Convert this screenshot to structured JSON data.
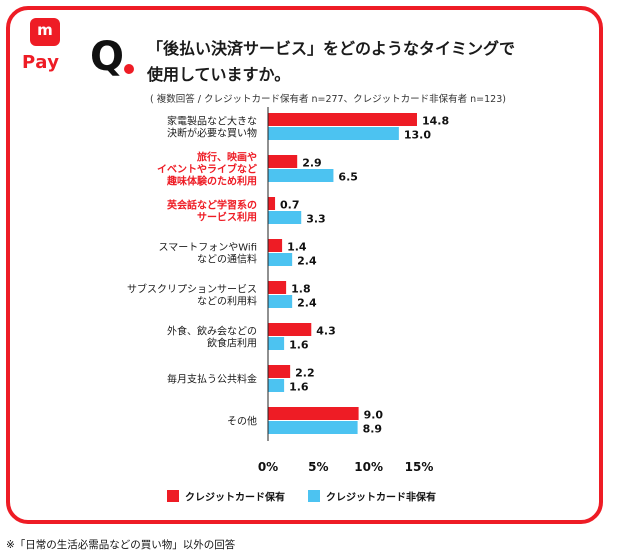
{
  "logo": {
    "mark_letter": "m",
    "text": "Pay"
  },
  "question": {
    "mark": "Q",
    "line1": "「後払い決済サービス」をどのようなタイミングで",
    "line2": "使用していますか。"
  },
  "note": "( 複数回答 / クレジットカード保有者 n=277、クレジットカード非保有者 n=123)",
  "footnote": "※「日常の生活必需品などの買い物」以外の回答",
  "colors": {
    "accent": "#ee1c25",
    "series1": "#ee1c25",
    "series2": "#4cc3f1"
  },
  "chart_data": {
    "type": "bar",
    "orientation": "horizontal",
    "categories": [
      [
        "家電製品など大きな",
        "決断が必要な買い物"
      ],
      [
        "旅行、映画や",
        "イベントやライブなど",
        "趣味体験のため利用"
      ],
      [
        "英会話など学習系の",
        "サービス利用"
      ],
      [
        "スマートフォンやWifi",
        "などの通信料"
      ],
      [
        "サブスクリプションサービス",
        "などの利用料"
      ],
      [
        "外食、飲み会などの",
        "飲食店利用"
      ],
      [
        "毎月支払う公共料金"
      ],
      [
        "その他"
      ]
    ],
    "highlighted": [
      false,
      true,
      true,
      false,
      false,
      false,
      false,
      false
    ],
    "series": [
      {
        "name": "クレジットカード保有",
        "values": [
          14.8,
          2.9,
          0.7,
          1.4,
          1.8,
          4.3,
          2.2,
          9.0
        ],
        "labels": [
          "14.8",
          "2.9",
          "0.7",
          "1.4",
          "1.8",
          "4.3",
          "2.2",
          "9.0"
        ]
      },
      {
        "name": "クレジットカード非保有",
        "values": [
          13.0,
          6.5,
          3.3,
          2.4,
          2.4,
          1.6,
          1.6,
          8.9
        ],
        "labels": [
          "13.0",
          "6.5",
          "3.3",
          "2.4",
          "2.4",
          "1.6",
          "1.6",
          "8.9"
        ]
      }
    ],
    "xlim": [
      0,
      15
    ],
    "ticks": [
      "0%",
      "5%",
      "10%",
      "15%"
    ],
    "tick_values": [
      0,
      5,
      10,
      15
    ],
    "grid": false,
    "legend_position": "bottom"
  }
}
